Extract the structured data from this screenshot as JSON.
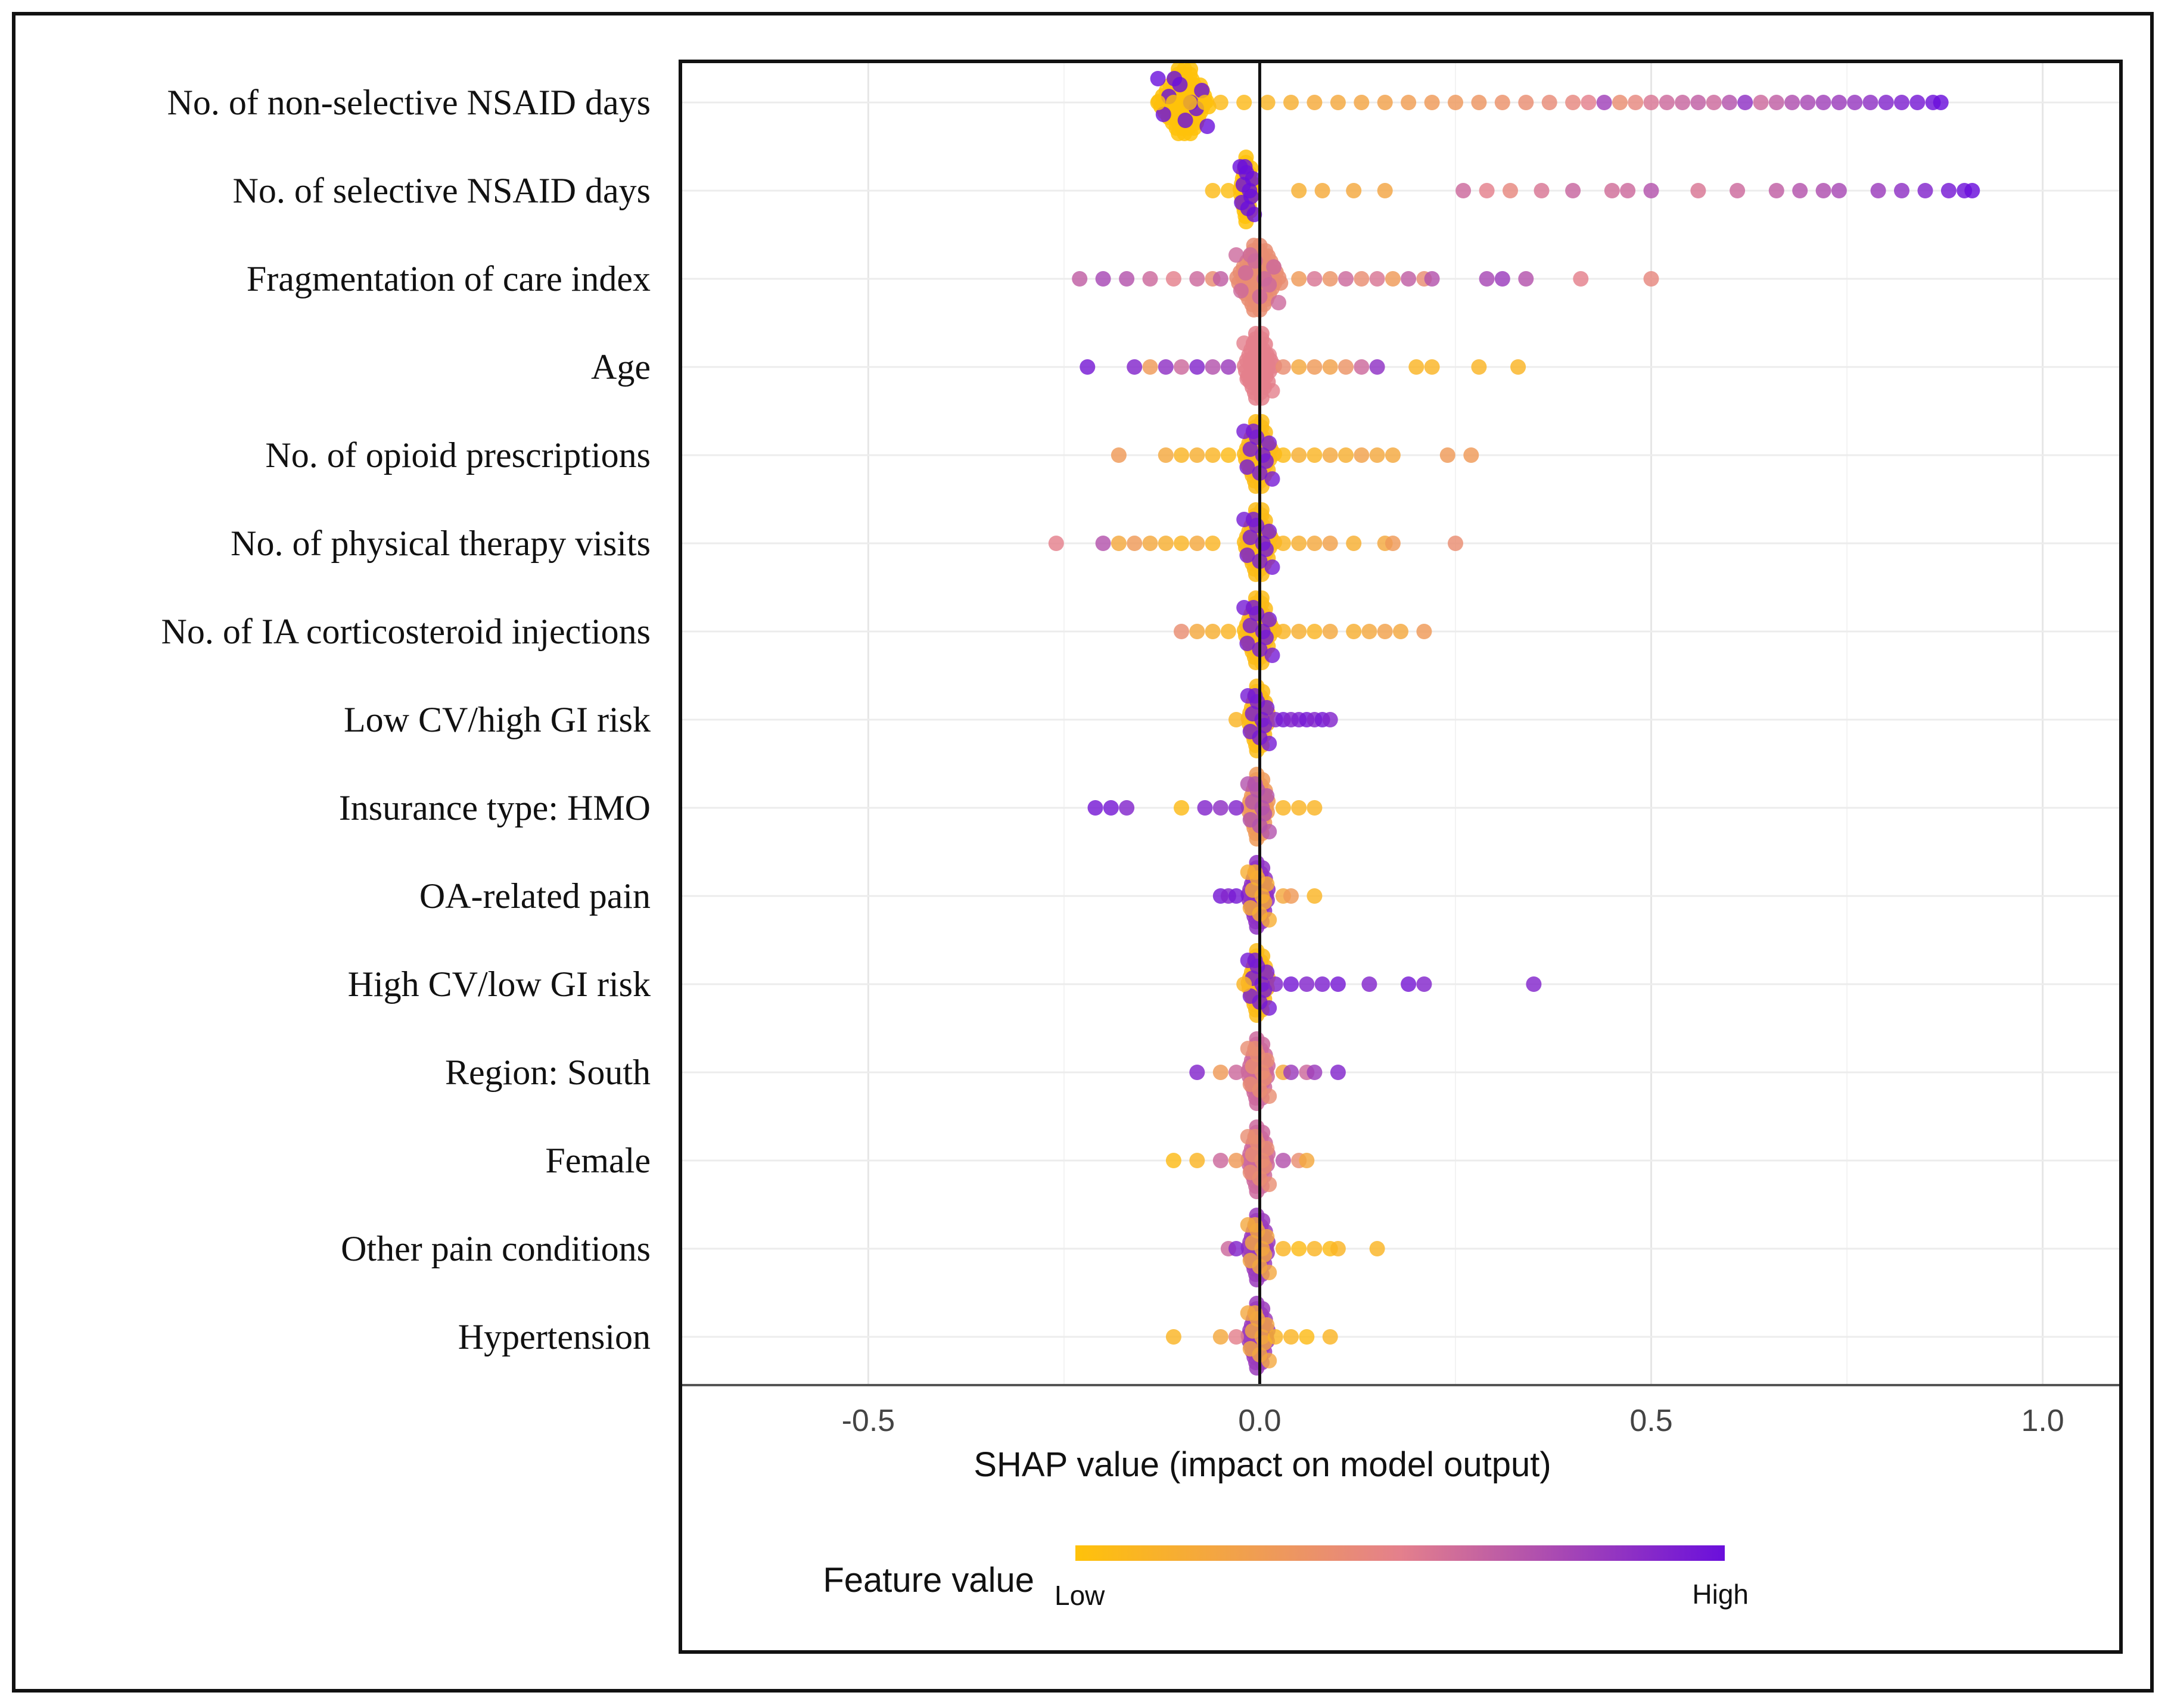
{
  "chart_data": {
    "type": "scatter",
    "subtype": "shap-beeswarm-summary",
    "title": "",
    "xlabel": "SHAP value (impact on model output)",
    "ylabel": "",
    "xlim": [
      -0.74,
      1.1
    ],
    "xticks": [
      -0.5,
      0.0,
      0.5,
      1.0
    ],
    "xtick_labels": [
      "-0.5",
      "0.0",
      "0.5",
      "1.0"
    ],
    "grid": true,
    "zero_line": 0.0,
    "colorbar": {
      "title": "Feature value",
      "low_label": "Low",
      "high_label": "High",
      "low_color": "#ffc20a",
      "mid_color": "#e4808c",
      "high_color": "#6a0fdc"
    },
    "features": [
      {
        "name": "No. of non-selective NSAID days",
        "dense": {
          "min": -0.13,
          "max": -0.06,
          "fv": 0.0
        },
        "points": [
          [
            -0.13,
            0.02
          ],
          [
            -0.11,
            0.0
          ],
          [
            -0.09,
            0.02
          ],
          [
            -0.07,
            0.02
          ],
          [
            -0.05,
            0.05
          ],
          [
            -0.02,
            0.06
          ],
          [
            0.01,
            0.1
          ],
          [
            0.04,
            0.15
          ],
          [
            0.07,
            0.18
          ],
          [
            0.1,
            0.2
          ],
          [
            0.13,
            0.22
          ],
          [
            0.16,
            0.25
          ],
          [
            0.19,
            0.28
          ],
          [
            0.22,
            0.3
          ],
          [
            0.25,
            0.32
          ],
          [
            0.28,
            0.34
          ],
          [
            0.31,
            0.37
          ],
          [
            0.34,
            0.4
          ],
          [
            0.37,
            0.42
          ],
          [
            0.4,
            0.45
          ],
          [
            0.42,
            0.5
          ],
          [
            0.44,
            0.78
          ],
          [
            0.46,
            0.4
          ],
          [
            0.48,
            0.45
          ],
          [
            0.5,
            0.55
          ],
          [
            0.52,
            0.6
          ],
          [
            0.54,
            0.62
          ],
          [
            0.56,
            0.65
          ],
          [
            0.58,
            0.6
          ],
          [
            0.6,
            0.7
          ],
          [
            0.62,
            0.85
          ],
          [
            0.64,
            0.6
          ],
          [
            0.66,
            0.65
          ],
          [
            0.68,
            0.72
          ],
          [
            0.7,
            0.75
          ],
          [
            0.72,
            0.78
          ],
          [
            0.74,
            0.8
          ],
          [
            0.76,
            0.82
          ],
          [
            0.78,
            0.85
          ],
          [
            0.8,
            0.9
          ],
          [
            0.82,
            0.92
          ],
          [
            0.84,
            0.95
          ],
          [
            0.86,
            0.98
          ],
          [
            0.87,
            1.0
          ]
        ]
      },
      {
        "name": "No. of selective NSAID days",
        "dense": {
          "min": -0.025,
          "max": -0.005,
          "fv": 0.0
        },
        "points": [
          [
            -0.06,
            0.05
          ],
          [
            -0.04,
            0.03
          ],
          [
            0.05,
            0.15
          ],
          [
            0.08,
            0.18
          ],
          [
            0.12,
            0.2
          ],
          [
            0.16,
            0.22
          ],
          [
            0.26,
            0.6
          ],
          [
            0.29,
            0.5
          ],
          [
            0.32,
            0.45
          ],
          [
            0.36,
            0.55
          ],
          [
            0.4,
            0.62
          ],
          [
            0.45,
            0.58
          ],
          [
            0.47,
            0.6
          ],
          [
            0.5,
            0.7
          ],
          [
            0.56,
            0.55
          ],
          [
            0.61,
            0.6
          ],
          [
            0.66,
            0.65
          ],
          [
            0.69,
            0.7
          ],
          [
            0.72,
            0.72
          ],
          [
            0.74,
            0.75
          ],
          [
            0.79,
            0.8
          ],
          [
            0.82,
            0.85
          ],
          [
            0.85,
            0.9
          ],
          [
            0.88,
            0.95
          ],
          [
            0.9,
            0.98
          ],
          [
            0.91,
            1.0
          ]
        ]
      },
      {
        "name": "Fragmentation of care index",
        "dense": {
          "min": -0.03,
          "max": 0.03,
          "fv": 0.4
        },
        "points": [
          [
            -0.23,
            0.65
          ],
          [
            -0.2,
            0.75
          ],
          [
            -0.17,
            0.7
          ],
          [
            -0.14,
            0.6
          ],
          [
            -0.11,
            0.5
          ],
          [
            -0.08,
            0.6
          ],
          [
            -0.06,
            0.4
          ],
          [
            -0.05,
            0.65
          ],
          [
            0.05,
            0.3
          ],
          [
            0.07,
            0.55
          ],
          [
            0.09,
            0.35
          ],
          [
            0.11,
            0.6
          ],
          [
            0.13,
            0.4
          ],
          [
            0.15,
            0.55
          ],
          [
            0.17,
            0.3
          ],
          [
            0.19,
            0.65
          ],
          [
            0.21,
            0.4
          ],
          [
            0.22,
            0.7
          ],
          [
            0.29,
            0.75
          ],
          [
            0.31,
            0.8
          ],
          [
            0.34,
            0.7
          ],
          [
            0.41,
            0.5
          ],
          [
            0.5,
            0.45
          ]
        ]
      },
      {
        "name": "Age",
        "dense": {
          "min": -0.02,
          "max": 0.02,
          "fv": 0.5
        },
        "points": [
          [
            -0.22,
            0.95
          ],
          [
            -0.16,
            0.9
          ],
          [
            -0.14,
            0.3
          ],
          [
            -0.12,
            0.85
          ],
          [
            -0.1,
            0.6
          ],
          [
            -0.08,
            0.9
          ],
          [
            -0.06,
            0.7
          ],
          [
            -0.04,
            0.8
          ],
          [
            0.03,
            0.4
          ],
          [
            0.05,
            0.2
          ],
          [
            0.07,
            0.3
          ],
          [
            0.09,
            0.25
          ],
          [
            0.11,
            0.35
          ],
          [
            0.13,
            0.6
          ],
          [
            0.15,
            0.85
          ],
          [
            0.2,
            0.1
          ],
          [
            0.22,
            0.1
          ],
          [
            0.28,
            0.1
          ],
          [
            0.33,
            0.1
          ]
        ]
      },
      {
        "name": "No. of opioid prescriptions",
        "dense": {
          "min": -0.02,
          "max": 0.02,
          "fv": 0.05
        },
        "points": [
          [
            -0.18,
            0.3
          ],
          [
            -0.12,
            0.2
          ],
          [
            -0.1,
            0.1
          ],
          [
            -0.08,
            0.15
          ],
          [
            -0.06,
            0.1
          ],
          [
            -0.04,
            0.05
          ],
          [
            0.03,
            0.05
          ],
          [
            0.05,
            0.15
          ],
          [
            0.07,
            0.1
          ],
          [
            0.09,
            0.2
          ],
          [
            0.11,
            0.15
          ],
          [
            0.13,
            0.25
          ],
          [
            0.15,
            0.2
          ],
          [
            0.17,
            0.2
          ],
          [
            0.24,
            0.3
          ],
          [
            0.27,
            0.3
          ]
        ]
      },
      {
        "name": "No. of physical therapy visits",
        "dense": {
          "min": -0.02,
          "max": 0.02,
          "fv": 0.05
        },
        "points": [
          [
            -0.26,
            0.5
          ],
          [
            -0.2,
            0.7
          ],
          [
            -0.18,
            0.2
          ],
          [
            -0.16,
            0.3
          ],
          [
            -0.14,
            0.2
          ],
          [
            -0.12,
            0.15
          ],
          [
            -0.1,
            0.1
          ],
          [
            -0.08,
            0.2
          ],
          [
            -0.06,
            0.1
          ],
          [
            0.03,
            0.1
          ],
          [
            0.05,
            0.15
          ],
          [
            0.07,
            0.2
          ],
          [
            0.09,
            0.25
          ],
          [
            0.12,
            0.15
          ],
          [
            0.16,
            0.2
          ],
          [
            0.17,
            0.3
          ],
          [
            0.25,
            0.4
          ]
        ]
      },
      {
        "name": "No. of IA corticosteroid injections",
        "dense": {
          "min": -0.02,
          "max": 0.02,
          "fv": 0.05
        },
        "points": [
          [
            -0.1,
            0.4
          ],
          [
            -0.08,
            0.2
          ],
          [
            -0.06,
            0.15
          ],
          [
            -0.04,
            0.1
          ],
          [
            0.03,
            0.1
          ],
          [
            0.05,
            0.15
          ],
          [
            0.07,
            0.1
          ],
          [
            0.09,
            0.2
          ],
          [
            0.12,
            0.15
          ],
          [
            0.14,
            0.2
          ],
          [
            0.16,
            0.25
          ],
          [
            0.18,
            0.2
          ],
          [
            0.21,
            0.3
          ]
        ]
      },
      {
        "name": "Low CV/high GI risk",
        "dense": {
          "min": -0.015,
          "max": 0.015,
          "fv": 0.05
        },
        "points": [
          [
            -0.03,
            0.1
          ],
          [
            0.02,
            0.9
          ],
          [
            0.03,
            0.95
          ],
          [
            0.04,
            0.9
          ],
          [
            0.05,
            0.92
          ],
          [
            0.06,
            0.95
          ],
          [
            0.07,
            0.9
          ],
          [
            0.08,
            0.95
          ],
          [
            0.09,
            0.9
          ]
        ]
      },
      {
        "name": "Insurance type: HMO",
        "dense": {
          "min": -0.015,
          "max": 0.015,
          "fv": 0.3
        },
        "points": [
          [
            -0.21,
            0.95
          ],
          [
            -0.19,
            0.95
          ],
          [
            -0.17,
            0.9
          ],
          [
            -0.1,
            0.05
          ],
          [
            -0.07,
            0.9
          ],
          [
            -0.05,
            0.85
          ],
          [
            -0.03,
            0.9
          ],
          [
            0.03,
            0.1
          ],
          [
            0.05,
            0.1
          ],
          [
            0.07,
            0.1
          ]
        ]
      },
      {
        "name": "OA-related pain",
        "dense": {
          "min": -0.015,
          "max": 0.015,
          "fv": 0.85
        },
        "points": [
          [
            -0.05,
            0.95
          ],
          [
            -0.04,
            0.9
          ],
          [
            -0.03,
            0.95
          ],
          [
            0.03,
            0.2
          ],
          [
            0.04,
            0.3
          ],
          [
            0.07,
            0.1
          ]
        ]
      },
      {
        "name": "High CV/low GI risk",
        "dense": {
          "min": -0.015,
          "max": 0.015,
          "fv": 0.05
        },
        "points": [
          [
            -0.02,
            0.1
          ],
          [
            0.02,
            0.9
          ],
          [
            0.04,
            0.95
          ],
          [
            0.06,
            0.9
          ],
          [
            0.08,
            0.92
          ],
          [
            0.1,
            0.95
          ],
          [
            0.14,
            0.9
          ],
          [
            0.19,
            0.95
          ],
          [
            0.21,
            0.9
          ],
          [
            0.35,
            0.9
          ]
        ]
      },
      {
        "name": "Region: South",
        "dense": {
          "min": -0.015,
          "max": 0.015,
          "fv": 0.6
        },
        "points": [
          [
            -0.08,
            0.9
          ],
          [
            -0.05,
            0.3
          ],
          [
            -0.03,
            0.6
          ],
          [
            0.03,
            0.2
          ],
          [
            0.04,
            0.8
          ],
          [
            0.06,
            0.6
          ],
          [
            0.07,
            0.8
          ],
          [
            0.1,
            0.9
          ]
        ]
      },
      {
        "name": "Female",
        "dense": {
          "min": -0.015,
          "max": 0.015,
          "fv": 0.6
        },
        "points": [
          [
            -0.11,
            0.05
          ],
          [
            -0.08,
            0.1
          ],
          [
            -0.05,
            0.6
          ],
          [
            -0.03,
            0.3
          ],
          [
            0.03,
            0.7
          ],
          [
            0.05,
            0.4
          ],
          [
            0.06,
            0.2
          ]
        ]
      },
      {
        "name": "Other pain conditions",
        "dense": {
          "min": -0.015,
          "max": 0.015,
          "fv": 0.8
        },
        "points": [
          [
            -0.04,
            0.6
          ],
          [
            -0.03,
            0.9
          ],
          [
            0.03,
            0.1
          ],
          [
            0.05,
            0.05
          ],
          [
            0.07,
            0.1
          ],
          [
            0.09,
            0.05
          ],
          [
            0.1,
            0.1
          ],
          [
            0.15,
            0.1
          ]
        ]
      },
      {
        "name": "Hypertension",
        "dense": {
          "min": -0.015,
          "max": 0.015,
          "fv": 0.8
        },
        "points": [
          [
            -0.11,
            0.1
          ],
          [
            -0.05,
            0.2
          ],
          [
            -0.03,
            0.5
          ],
          [
            0.02,
            0.1
          ],
          [
            0.04,
            0.1
          ],
          [
            0.06,
            0.05
          ],
          [
            0.09,
            0.1
          ]
        ]
      }
    ]
  }
}
